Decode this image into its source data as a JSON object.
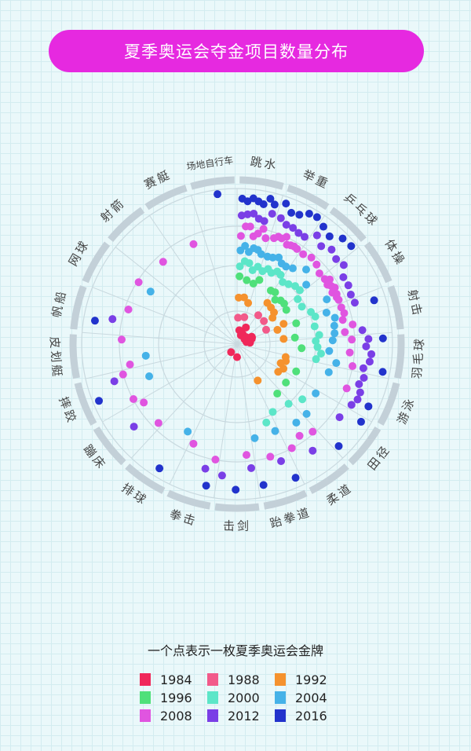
{
  "title": "夏季奥运会夺金项目数量分布",
  "legend_title": "一个点表示一枚夏季奥运会金牌",
  "chart_data": {
    "type": "scatter",
    "subtype": "polar-dot",
    "title": "夏季奥运会夺金项目数量分布",
    "note": "一个点表示一枚夏季奥运会金牌",
    "years": [
      "1984",
      "1988",
      "1992",
      "1996",
      "2000",
      "2004",
      "2008",
      "2012",
      "2016"
    ],
    "colors": [
      "#f0285a",
      "#f25a8a",
      "#f5922e",
      "#4fe07a",
      "#5ce6c8",
      "#45b2e8",
      "#e055e0",
      "#7a3fe6",
      "#2233cc"
    ],
    "sports": [
      {
        "name": "跳水",
        "golds": [
          1,
          2,
          3,
          3,
          5,
          6,
          7,
          6,
          7
        ]
      },
      {
        "name": "举重",
        "golds": [
          4,
          0,
          0,
          2,
          5,
          5,
          8,
          5,
          5
        ]
      },
      {
        "name": "乒乓球",
        "golds": [
          0,
          2,
          3,
          4,
          4,
          3,
          4,
          4,
          4
        ]
      },
      {
        "name": "体操",
        "golds": [
          5,
          1,
          2,
          1,
          3,
          1,
          9,
          4,
          0
        ]
      },
      {
        "name": "射击",
        "golds": [
          3,
          0,
          2,
          2,
          3,
          4,
          5,
          2,
          1
        ]
      },
      {
        "name": "羽毛球",
        "golds": [
          0,
          0,
          0,
          1,
          4,
          3,
          3,
          5,
          2
        ]
      },
      {
        "name": "游泳",
        "golds": [
          0,
          0,
          4,
          1,
          0,
          1,
          1,
          5,
          1
        ]
      },
      {
        "name": "田径",
        "golds": [
          0,
          0,
          1,
          1,
          1,
          2,
          0,
          1,
          2
        ]
      },
      {
        "name": "柔道",
        "golds": [
          0,
          0,
          1,
          1,
          2,
          1,
          3,
          1,
          0
        ]
      },
      {
        "name": "跆拳道",
        "golds": [
          0,
          0,
          0,
          0,
          1,
          2,
          1,
          1,
          2
        ]
      },
      {
        "name": "击剑",
        "golds": [
          1,
          0,
          0,
          0,
          0,
          0,
          1,
          2,
          1
        ]
      },
      {
        "name": "拳击",
        "golds": [
          0,
          0,
          0,
          0,
          0,
          0,
          2,
          1,
          1
        ]
      },
      {
        "name": "排球",
        "golds": [
          1,
          0,
          0,
          0,
          0,
          1,
          0,
          0,
          1
        ]
      },
      {
        "name": "蹦床",
        "golds": [
          0,
          0,
          0,
          0,
          0,
          0,
          2,
          1,
          0
        ]
      },
      {
        "name": "摔跤",
        "golds": [
          0,
          0,
          0,
          0,
          0,
          1,
          2,
          1,
          1
        ]
      },
      {
        "name": "皮划艇",
        "golds": [
          0,
          0,
          0,
          0,
          0,
          1,
          2,
          0,
          0
        ]
      },
      {
        "name": "帆船",
        "golds": [
          0,
          0,
          0,
          0,
          0,
          0,
          1,
          1,
          1
        ]
      },
      {
        "name": "网球",
        "golds": [
          0,
          0,
          0,
          0,
          0,
          1,
          1,
          0,
          0
        ]
      },
      {
        "name": "射箭",
        "golds": [
          0,
          0,
          0,
          0,
          0,
          0,
          1,
          0,
          0
        ]
      },
      {
        "name": "赛艇",
        "golds": [
          0,
          0,
          0,
          0,
          0,
          0,
          1,
          0,
          0
        ]
      },
      {
        "name": "场地自行车",
        "golds": [
          0,
          0,
          0,
          0,
          0,
          0,
          0,
          0,
          1
        ]
      }
    ],
    "grid": true,
    "legend": "bottom"
  }
}
